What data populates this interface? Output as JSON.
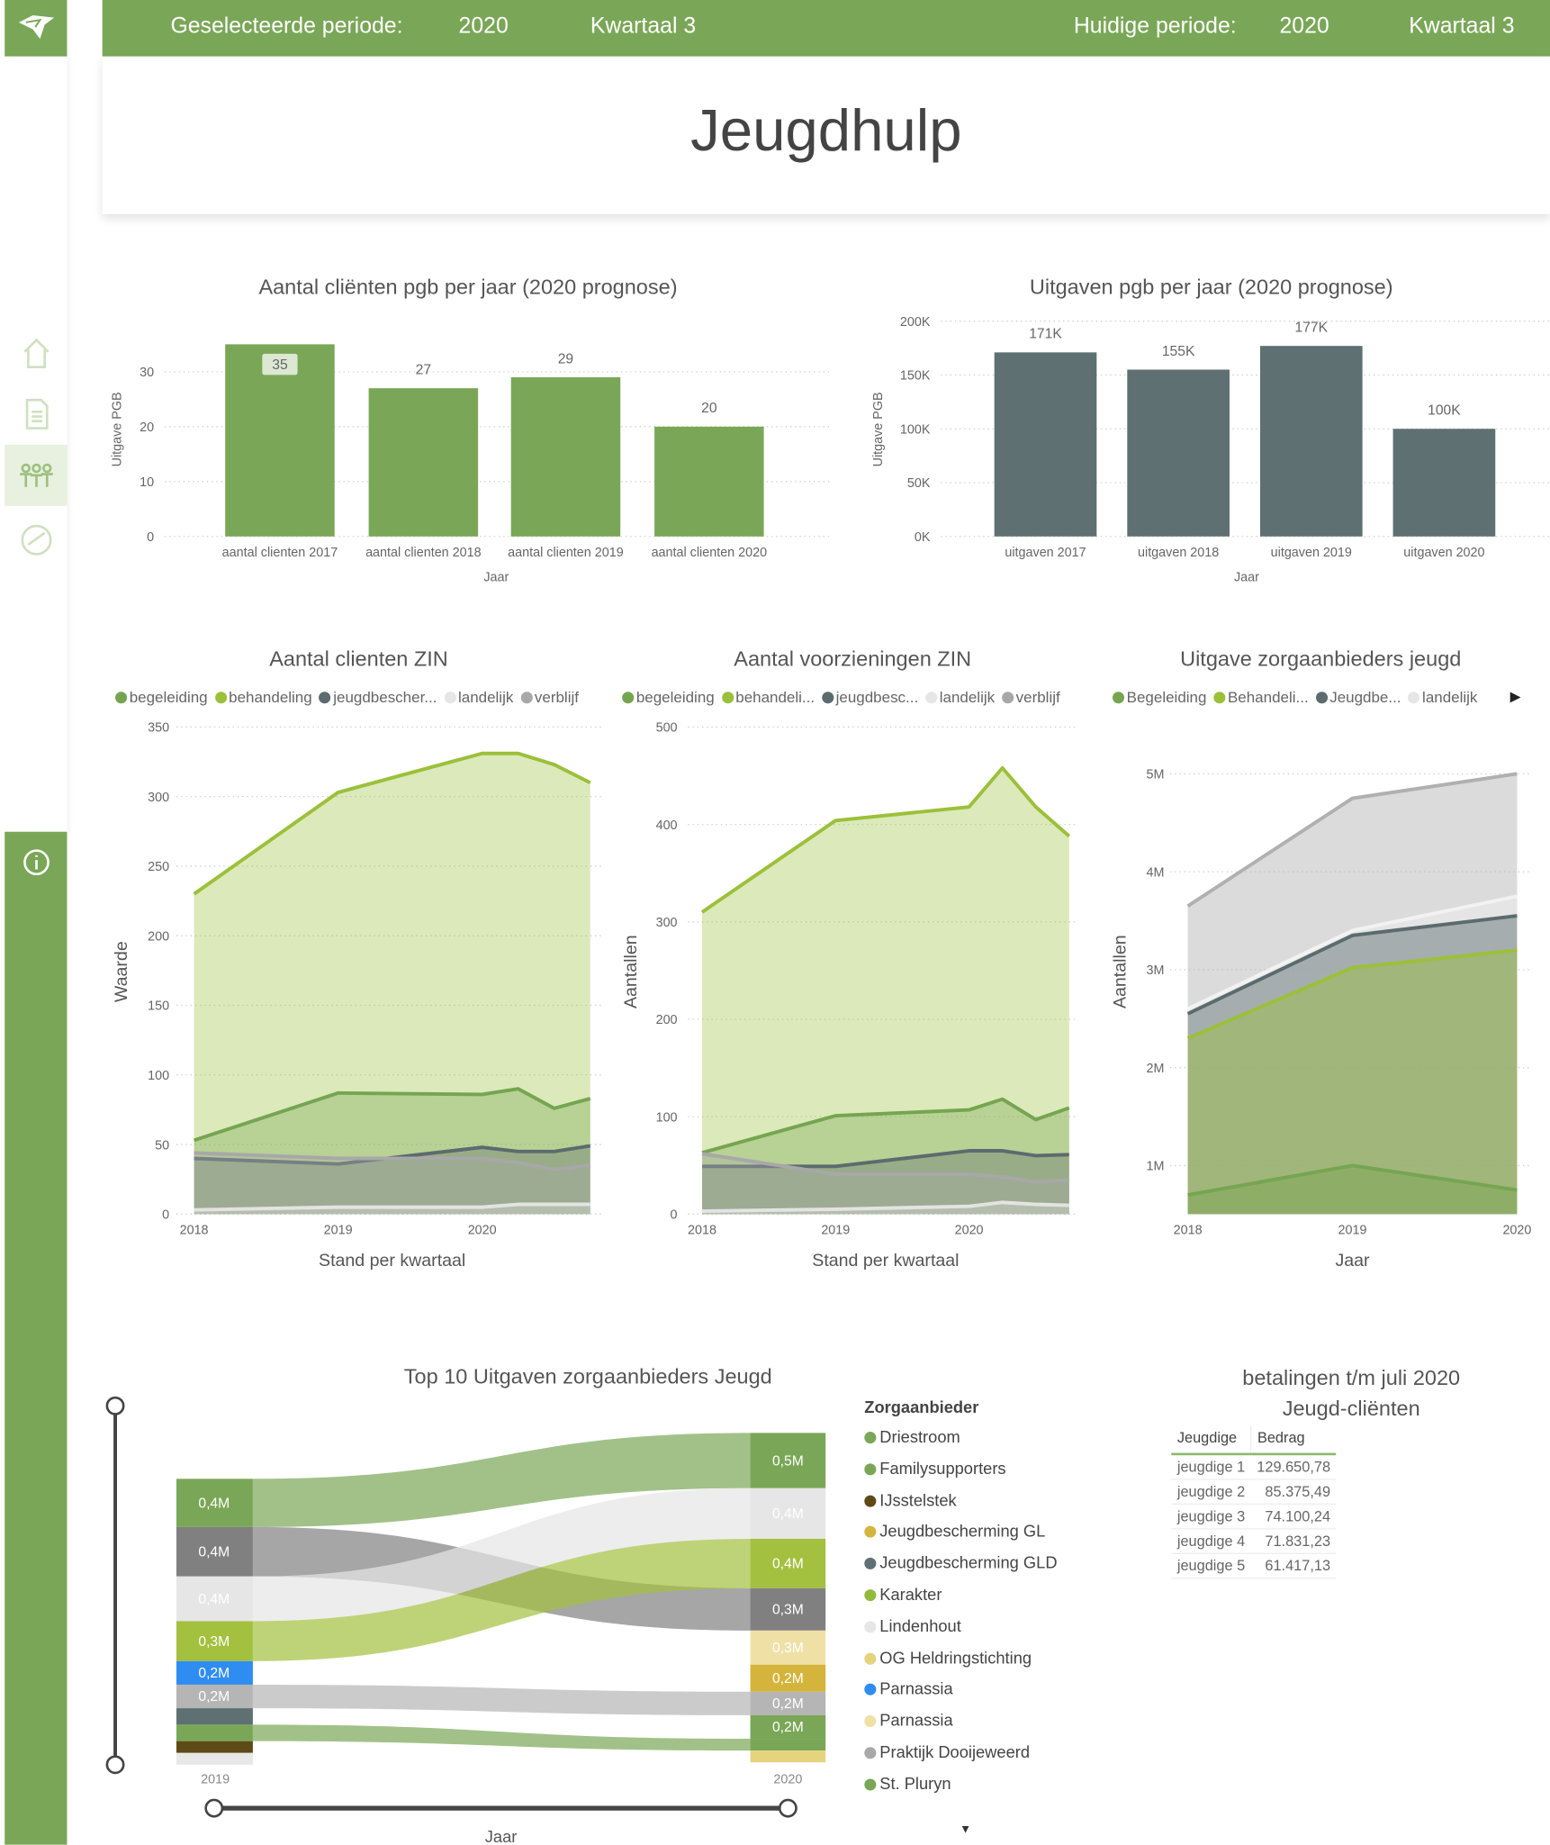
{
  "header": {
    "selected_label": "Geselecteerde periode:",
    "selected_year": "2020",
    "selected_quarter": "Kwartaal 3",
    "current_label": "Huidige periode:",
    "current_year": "2020",
    "current_quarter": "Kwartaal 3"
  },
  "page_title": "Jeugdhulp",
  "sidebar": {
    "accent": "#7aa757",
    "items": [
      {
        "icon": "home-icon"
      },
      {
        "icon": "document-icon"
      },
      {
        "icon": "people-icon",
        "active": true
      },
      {
        "icon": "gauge-icon"
      },
      {
        "icon": "info-icon"
      }
    ]
  },
  "chart_data": [
    {
      "type": "bar",
      "title": "Aantal cliënten pgb per jaar (2020 prognose)",
      "categories": [
        "aantal clienten 2017",
        "aantal clienten 2018",
        "aantal clienten 2019",
        "aantal clienten 2020"
      ],
      "values": [
        35,
        27,
        29,
        20
      ],
      "data_labels": [
        "35",
        "27",
        "29",
        "20"
      ],
      "xlabel": "Jaar",
      "ylabel": "Uitgave PGB",
      "yticks": [
        "0",
        "10",
        "20",
        "30"
      ],
      "ytick_values": [
        0,
        10,
        20,
        30
      ],
      "color": "#7aa757",
      "grid": true
    },
    {
      "type": "bar",
      "title": "Uitgaven pgb per jaar (2020 prognose)",
      "categories": [
        "uitgaven 2017",
        "uitgaven 2018",
        "uitgaven 2019",
        "uitgaven 2020"
      ],
      "values": [
        171000,
        155000,
        177000,
        100000
      ],
      "data_labels": [
        "171K",
        "155K",
        "177K",
        "100K"
      ],
      "xlabel": "Jaar",
      "ylabel": "Uitgave PGB",
      "yticks": [
        "0K",
        "50K",
        "100K",
        "150K",
        "200K"
      ],
      "ytick_values": [
        0,
        50000,
        100000,
        150000,
        200000
      ],
      "color": "#5f7073",
      "grid": true
    },
    {
      "type": "area",
      "title": "Aantal clienten ZIN",
      "xlabel": "Stand per kwartaal",
      "ylabel": "Waarde",
      "xticks": [
        "2018",
        "2019",
        "2020"
      ],
      "ylim": [
        0,
        350
      ],
      "yticks": [
        "0",
        "50",
        "100",
        "150",
        "200",
        "250",
        "300",
        "350"
      ],
      "x": [
        2018,
        2019,
        2020,
        2020.25,
        2020.5,
        2020.75
      ],
      "legend": "top",
      "series": [
        {
          "name": "behandeling",
          "color": "#9bc03a",
          "values": [
            230,
            303,
            331,
            331,
            323,
            310
          ]
        },
        {
          "name": "begeleiding",
          "color": "#76a551",
          "values": [
            53,
            87,
            86,
            90,
            76,
            83
          ]
        },
        {
          "name": "jeugdbescher...",
          "color": "#5b6b6e",
          "values": [
            40,
            36,
            48,
            45,
            45,
            49
          ]
        },
        {
          "name": "verblijf",
          "color": "#a8a8a8",
          "values": [
            44,
            40,
            40,
            37,
            32,
            35
          ]
        },
        {
          "name": "landelijk",
          "color": "#e3e3e3",
          "values": [
            3,
            5,
            5,
            7,
            7,
            7
          ]
        }
      ],
      "legend_order": [
        "begeleiding",
        "behandeling",
        "jeugdbescher...",
        "landelijk",
        "verblijf"
      ]
    },
    {
      "type": "area",
      "title": "Aantal voorzieningen ZIN",
      "xlabel": "Stand per kwartaal",
      "ylabel": "Aantallen",
      "xticks": [
        "2018",
        "2019",
        "2020"
      ],
      "ylim": [
        0,
        500
      ],
      "yticks": [
        "0",
        "100",
        "200",
        "300",
        "400",
        "500"
      ],
      "x": [
        2018,
        2019,
        2020,
        2020.25,
        2020.5,
        2020.75
      ],
      "legend": "top",
      "series": [
        {
          "name": "behandeli...",
          "color": "#9bc03a",
          "values": [
            310,
            404,
            418,
            458,
            418,
            388
          ]
        },
        {
          "name": "begeleiding",
          "color": "#76a551",
          "values": [
            63,
            101,
            107,
            118,
            97,
            109
          ]
        },
        {
          "name": "jeugdbesc...",
          "color": "#5b6b6e",
          "values": [
            49,
            49,
            65,
            65,
            60,
            61
          ]
        },
        {
          "name": "verblijf",
          "color": "#a8a8a8",
          "values": [
            62,
            41,
            41,
            38,
            33,
            35
          ]
        },
        {
          "name": "landelijk",
          "color": "#e3e3e3",
          "values": [
            3,
            5,
            8,
            12,
            10,
            9
          ]
        }
      ],
      "legend_order": [
        "begeleiding",
        "behandeli...",
        "jeugdbesc...",
        "landelijk",
        "verblijf"
      ]
    },
    {
      "type": "area",
      "title": "Uitgave zorgaanbieders jeugd",
      "xlabel": "Jaar",
      "ylabel": "Aantallen",
      "xticks": [
        "2018",
        "2019",
        "2020"
      ],
      "yticks": [
        "1M",
        "2M",
        "3M",
        "4M",
        "5M"
      ],
      "ytick_values": [
        1,
        2,
        3,
        4,
        5
      ],
      "ylim": [
        0.5,
        5.2
      ],
      "x": [
        2018,
        2019,
        2020
      ],
      "legend": "top",
      "series": [
        {
          "name": "",
          "color": "#b0b0b0",
          "values": [
            3.65,
            4.75,
            5.0
          ]
        },
        {
          "name": "landelijk",
          "color": "#f2f2f2",
          "values": [
            2.6,
            3.4,
            3.75
          ]
        },
        {
          "name": "Jeugdbe...",
          "color": "#5b6b6e",
          "values": [
            2.55,
            3.35,
            3.55
          ]
        },
        {
          "name": "Behandeli...",
          "color": "#9bc03a",
          "values": [
            2.3,
            3.02,
            3.2
          ]
        },
        {
          "name": "Begeleiding",
          "color": "#76a551",
          "values": [
            0.7,
            1.0,
            0.75
          ]
        }
      ],
      "legend_order": [
        "Begeleiding",
        "Behandeli...",
        "Jeugdbe...",
        "landelijk"
      ]
    }
  ],
  "sankey": {
    "title": "Top 10 Uitgaven zorgaanbieders Jeugd",
    "left_label": "2019",
    "right_label": "2020",
    "slider_label": "Jaar",
    "left_nodes": [
      {
        "label": "0,4M",
        "color": "#7aa757"
      },
      {
        "label": "0,4M",
        "color": "#808080"
      },
      {
        "label": "0,4M",
        "color": "#e6e6e6"
      },
      {
        "label": "0,3M",
        "color": "#a3c03f"
      },
      {
        "label": "0,2M",
        "color": "#2f8cf0"
      },
      {
        "label": "0,2M",
        "color": "#b5b5b5"
      },
      {
        "label": "",
        "color": "#5f7073"
      },
      {
        "label": "",
        "color": "#7aa757"
      },
      {
        "label": "",
        "color": "#5e4a16"
      },
      {
        "label": "",
        "color": "#e8e8e8"
      }
    ],
    "right_nodes": [
      {
        "label": "0,5M",
        "color": "#7aa757"
      },
      {
        "label": "0,4M",
        "color": "#e6e6e6"
      },
      {
        "label": "0,4M",
        "color": "#a3c03f"
      },
      {
        "label": "0,3M",
        "color": "#808080"
      },
      {
        "label": "0,3M",
        "color": "#efe0a6"
      },
      {
        "label": "0,2M",
        "color": "#d4b43a"
      },
      {
        "label": "0,2M",
        "color": "#b5b5b5"
      },
      {
        "label": "0,2M",
        "color": "#7aa757"
      },
      {
        "label": "",
        "color": "#7aa757"
      },
      {
        "label": "",
        "color": "#e6d37e"
      }
    ],
    "legend_title": "Zorgaanbieder",
    "legend": [
      {
        "name": "Driestroom",
        "color": "#7aa757"
      },
      {
        "name": "Familysupporters",
        "color": "#7aa757"
      },
      {
        "name": "IJsstelstek",
        "color": "#5e4a16"
      },
      {
        "name": "Jeugdbescherming GL",
        "color": "#d4b43a"
      },
      {
        "name": "Jeugdbescherming GLD",
        "color": "#5f7073"
      },
      {
        "name": "Karakter",
        "color": "#8fba3a"
      },
      {
        "name": "Lindenhout",
        "color": "#e6e6e6"
      },
      {
        "name": "OG Heldringstichting",
        "color": "#e6d37e"
      },
      {
        "name": "Parnassia",
        "color": "#2f8cf0"
      },
      {
        "name": "Parnassia",
        "color": "#efe0a6"
      },
      {
        "name": "Praktijk Dooijeweerd",
        "color": "#a8a8a8"
      },
      {
        "name": "St. Pluryn",
        "color": "#7aa757"
      }
    ]
  },
  "payments": {
    "title_line1": "betalingen t/m juli 2020",
    "title_line2": "Jeugd-cliënten",
    "columns": [
      "Jeugdige",
      "Bedrag"
    ],
    "rows": [
      [
        "jeugdige 1",
        "129.650,78"
      ],
      [
        "jeugdige 2",
        "85.375,49"
      ],
      [
        "jeugdige 3",
        "74.100,24"
      ],
      [
        "jeugdige 4",
        "71.831,23"
      ],
      [
        "jeugdige 5",
        "61.417,13"
      ]
    ]
  }
}
